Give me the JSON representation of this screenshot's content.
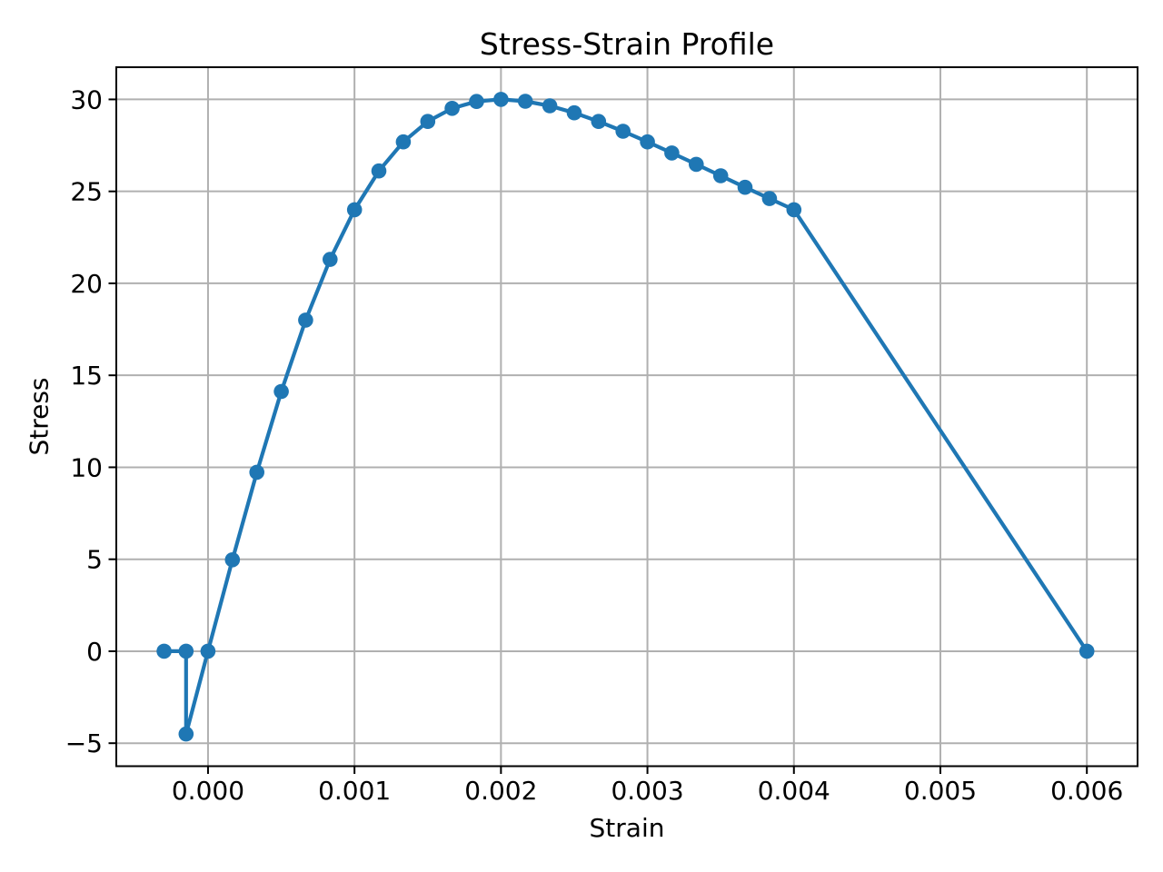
{
  "figure": {
    "background": "#ffffff",
    "text_color": "#000000"
  },
  "chart_data": {
    "type": "line",
    "title": "Stress-Strain Profile",
    "xlabel": "Strain",
    "ylabel": "Stress",
    "grid": true,
    "grid_color": "#b0b0b0",
    "spine_color": "#000000",
    "line_color": "#1f77b4",
    "marker": "circle",
    "marker_color": "#1f77b4",
    "legend": "none",
    "xlim": [
      -0.00062,
      0.00634
    ],
    "ylim": [
      -6.2,
      31.7
    ],
    "x_ticks": [
      0.0,
      0.001,
      0.002,
      0.003,
      0.004,
      0.005,
      0.006
    ],
    "x_tick_labels": [
      "0.000",
      "0.001",
      "0.002",
      "0.003",
      "0.004",
      "0.005",
      "0.006"
    ],
    "y_ticks": [
      -5,
      0,
      5,
      10,
      15,
      20,
      25,
      30
    ],
    "y_tick_labels": [
      "−5",
      "0",
      "5",
      "10",
      "15",
      "20",
      "25",
      "30"
    ],
    "series": [
      {
        "name": "stress-strain-curve",
        "x": [
          -0.0003,
          -0.00015,
          -0.00015,
          0.0,
          0.0001667,
          0.0003333,
          0.0005,
          0.0006667,
          0.0008333,
          0.001,
          0.0011667,
          0.0013333,
          0.0015,
          0.0016667,
          0.0018333,
          0.002,
          0.0021667,
          0.0023333,
          0.0025,
          0.0026667,
          0.0028333,
          0.003,
          0.0031667,
          0.0033333,
          0.0035,
          0.0036667,
          0.0038333,
          0.004,
          0.006
        ],
        "y": [
          0.0,
          0.0,
          -4.5,
          0.0,
          4.97,
          9.73,
          14.12,
          18.0,
          21.3,
          24.0,
          26.11,
          27.69,
          28.8,
          29.51,
          29.89,
          30.0,
          29.9,
          29.65,
          29.27,
          28.8,
          28.27,
          27.69,
          27.09,
          26.47,
          25.85,
          25.22,
          24.61,
          24.0,
          0.0
        ]
      }
    ]
  }
}
